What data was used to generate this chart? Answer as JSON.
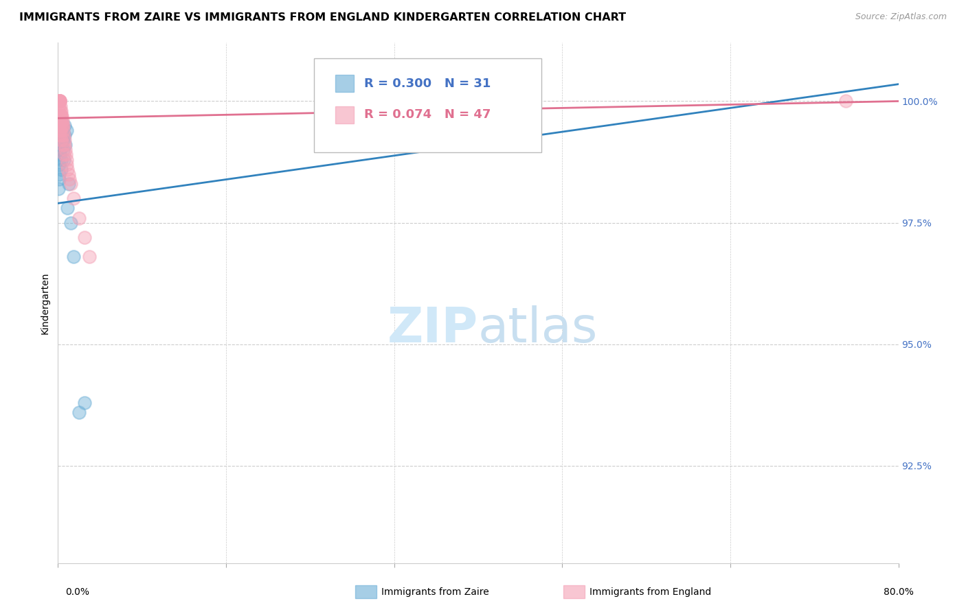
{
  "title": "IMMIGRANTS FROM ZAIRE VS IMMIGRANTS FROM ENGLAND KINDERGARTEN CORRELATION CHART",
  "source": "Source: ZipAtlas.com",
  "ylabel": "Kindergarten",
  "yticks": [
    92.5,
    95.0,
    97.5,
    100.0
  ],
  "ytick_labels": [
    "92.5%",
    "95.0%",
    "97.5%",
    "100.0%"
  ],
  "xmin": 0.0,
  "xmax": 80.0,
  "ymin": 90.5,
  "ymax": 101.2,
  "legend_r1": "R = 0.300",
  "legend_n1": "N = 31",
  "legend_r2": "R = 0.074",
  "legend_n2": "N = 47",
  "legend_label1": "Immigrants from Zaire",
  "legend_label2": "Immigrants from England",
  "zaire_color": "#6baed6",
  "england_color": "#f4a0b5",
  "zaire_line_color": "#3182bd",
  "england_line_color": "#e07090",
  "watermark_zip": "ZIP",
  "watermark_atlas": "atlas",
  "watermark_color_zip": "#d0e8f8",
  "watermark_color_atlas": "#c8dff0",
  "zaire_x": [
    0.05,
    0.08,
    0.1,
    0.12,
    0.15,
    0.18,
    0.2,
    0.22,
    0.25,
    0.28,
    0.3,
    0.33,
    0.38,
    0.4,
    0.42,
    0.48,
    0.5,
    0.55,
    0.6,
    0.65,
    0.7,
    0.8,
    0.9,
    1.0,
    1.2,
    1.5,
    2.0,
    2.5,
    0.35,
    0.45,
    28.0
  ],
  "zaire_y": [
    98.2,
    98.4,
    98.7,
    98.5,
    98.9,
    99.0,
    99.1,
    99.2,
    99.0,
    98.8,
    98.6,
    99.3,
    99.1,
    99.4,
    99.5,
    99.2,
    99.0,
    98.8,
    99.5,
    99.3,
    99.1,
    99.4,
    97.8,
    98.3,
    97.5,
    96.8,
    93.6,
    93.8,
    99.2,
    99.3,
    100.0
  ],
  "england_x": [
    0.04,
    0.06,
    0.08,
    0.1,
    0.12,
    0.14,
    0.16,
    0.18,
    0.2,
    0.22,
    0.25,
    0.28,
    0.3,
    0.32,
    0.35,
    0.38,
    0.4,
    0.43,
    0.45,
    0.48,
    0.5,
    0.55,
    0.6,
    0.65,
    0.7,
    0.75,
    0.8,
    0.85,
    0.9,
    1.0,
    1.1,
    1.2,
    1.5,
    2.0,
    2.5,
    3.0,
    0.15,
    0.2,
    0.25,
    0.3,
    0.1,
    0.18,
    0.22,
    0.35,
    0.42,
    0.55,
    75.0
  ],
  "england_y": [
    99.8,
    100.0,
    100.0,
    100.0,
    99.9,
    100.0,
    100.0,
    100.0,
    100.0,
    99.9,
    99.8,
    99.7,
    99.7,
    99.8,
    99.6,
    99.5,
    99.7,
    99.6,
    99.5,
    99.5,
    99.4,
    99.3,
    99.2,
    99.1,
    99.0,
    98.9,
    98.8,
    98.7,
    98.6,
    98.5,
    98.4,
    98.3,
    98.0,
    97.6,
    97.2,
    96.8,
    99.4,
    99.3,
    99.5,
    99.2,
    99.7,
    99.6,
    99.4,
    99.3,
    99.1,
    98.9,
    100.0
  ],
  "title_fontsize": 11.5,
  "axis_label_fontsize": 10,
  "tick_fontsize": 10,
  "legend_fontsize": 13,
  "watermark_fontsize_zip": 52,
  "watermark_fontsize_atlas": 52,
  "source_fontsize": 9
}
